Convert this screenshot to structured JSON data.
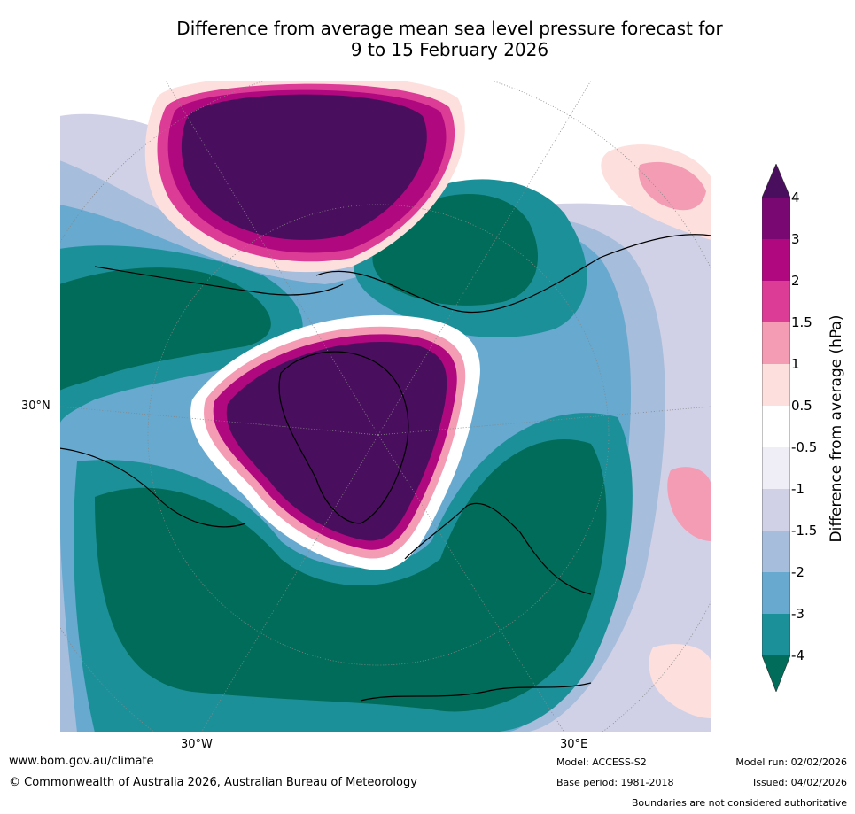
{
  "title": {
    "line1": "Difference from average mean sea level pressure forecast for",
    "line2": "9 to 15 February 2026"
  },
  "map": {
    "projection": "polar-stereographic-north",
    "lat_label": "30°N",
    "lon_labels": [
      "30°W",
      "30°E"
    ],
    "graticule_color": "#888888"
  },
  "colorbar": {
    "title": "Difference from average (hPa)",
    "tick_labels": [
      "4",
      "3",
      "2",
      "1.5",
      "1",
      "0.5",
      "-0.5",
      "-1",
      "-1.5",
      "-2",
      "-3",
      "-4"
    ],
    "colors": {
      "above_4": "#4a0e5e",
      "3_to_4": "#7a0873",
      "2_to_3": "#b0087e",
      "1_5_to_2": "#dc3b96",
      "1_to_1_5": "#f49cb4",
      "0_5_to_1": "#fde0dd",
      "neutral": "#ffffff",
      "m1_to_m0_5": "#efedf5",
      "m1_5_to_m1": "#d0d1e6",
      "m2_to_m1_5": "#a6bddb",
      "m3_to_m2": "#67a9cf",
      "m4_to_m3": "#1c9099",
      "below_m4": "#016c59"
    }
  },
  "footer": {
    "url": "www.bom.gov.au/climate",
    "copyright": "© Commonwealth of Australia 2026, Australian Bureau of Meteorology",
    "model": "Model: ACCESS-S2",
    "base_period": "Base period: 1981-2018",
    "model_run": "Model run: 02/02/2026",
    "issued": "Issued: 04/02/2026",
    "disclaimer": "Boundaries are not considered authoritative"
  }
}
